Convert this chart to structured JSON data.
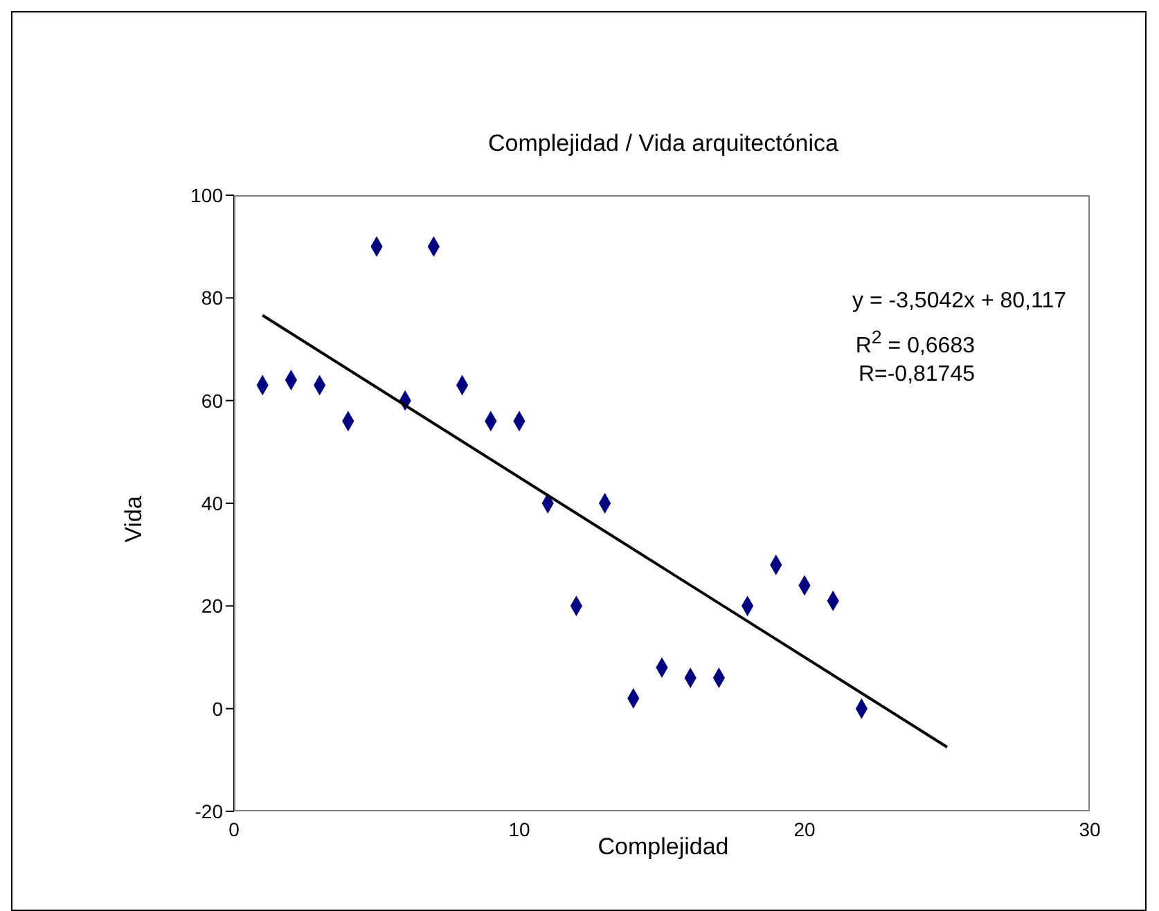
{
  "chart_data": {
    "type": "scatter",
    "title": "Complejidad / Vida arquitectónica",
    "xlabel": "Complejidad",
    "ylabel": "Vida",
    "x": [
      1,
      2,
      3,
      4,
      5,
      6,
      7,
      8,
      9,
      10,
      11,
      12,
      13,
      14,
      15,
      16,
      17,
      18,
      19,
      20,
      21,
      22
    ],
    "series": [
      {
        "color": "#000080",
        "values": [
          63,
          64,
          63,
          56,
          90,
          60,
          90,
          63,
          56,
          56,
          40,
          20,
          40,
          2,
          8,
          6,
          6,
          20,
          28,
          24,
          21,
          0
        ]
      },
      {
        "type": "line",
        "color": "#000000",
        "marker": "none",
        "x": [
          1,
          25
        ],
        "values": [
          76.6,
          -7.5
        ]
      }
    ],
    "xlim": [
      0,
      30
    ],
    "xticks": [
      0,
      10,
      20,
      30
    ],
    "ylim": [
      -20,
      100
    ],
    "yticks": [
      -20,
      0,
      20,
      40,
      60,
      80,
      100
    ],
    "marker": "diamond",
    "grid": false,
    "legend": false,
    "annotations": [
      "y = -3,5042x + 80,117",
      "R$^{2}$ = 0,6683",
      "R=-0,81745"
    ]
  }
}
